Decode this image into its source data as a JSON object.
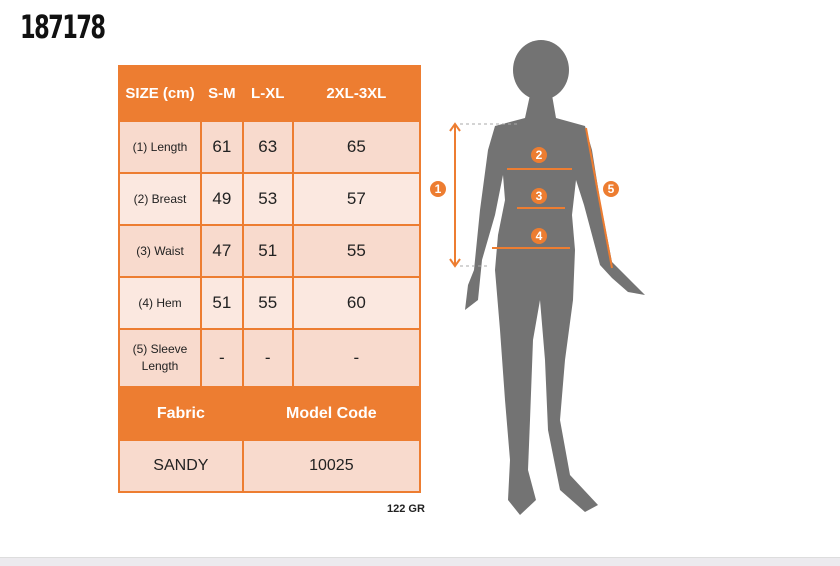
{
  "product_code": "187178",
  "table": {
    "header": [
      "SIZE (cm)",
      "S-M",
      "L-XL",
      "2XL-3XL"
    ],
    "rows": [
      {
        "label": "(1) Length",
        "values": [
          "61",
          "63",
          "65"
        ]
      },
      {
        "label": "(2) Breast",
        "values": [
          "49",
          "53",
          "57"
        ]
      },
      {
        "label": "(3) Waist",
        "values": [
          "47",
          "51",
          "55"
        ]
      },
      {
        "label": "(4) Hem",
        "values": [
          "51",
          "55",
          "60"
        ]
      },
      {
        "label": "(5) Sleeve Length",
        "values": [
          "-",
          "-",
          "-"
        ]
      }
    ],
    "fabric_label": "Fabric",
    "model_code_label": "Model Code",
    "fabric": "SANDY",
    "model_code": "10025"
  },
  "weight": "122 GR",
  "markers": [
    "1",
    "2",
    "3",
    "4",
    "5"
  ],
  "colors": {
    "accent": "#ed7d31",
    "cell": "#f8dacd",
    "silhouette": "#737373"
  }
}
